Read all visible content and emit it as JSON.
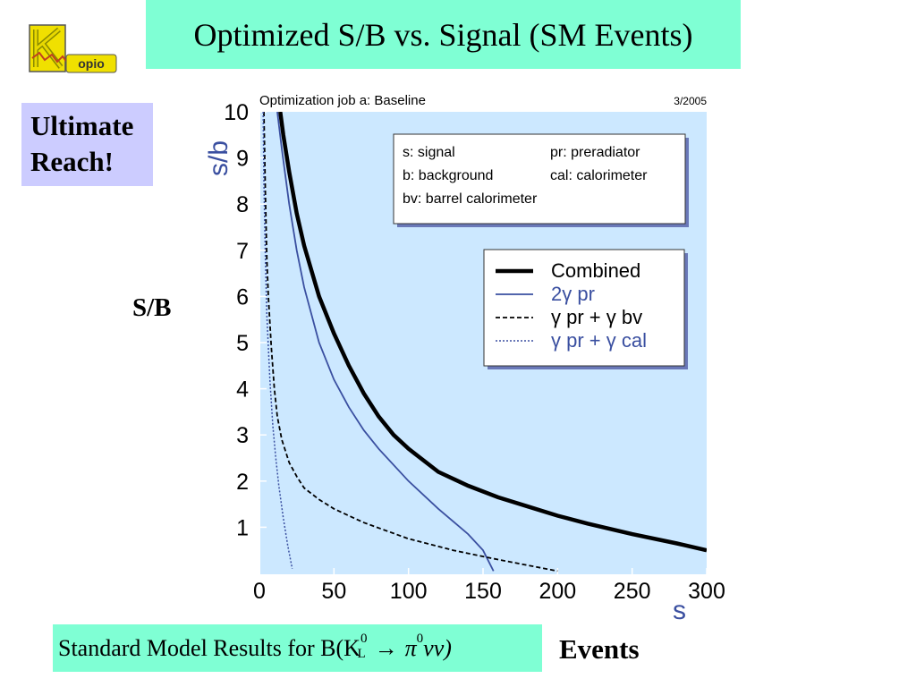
{
  "slide": {
    "title": "Optimized S/B vs. Signal (SM Events)",
    "logo_text": "opio",
    "logo_letter": "K",
    "reach_line1": "Ultimate",
    "reach_line2": "Reach!",
    "side_ylabel": "S/B",
    "side_xlabel": "Events",
    "footer_prefix": "Standard Model Results  for B(K",
    "footer_sup": "0",
    "footer_sub": "L",
    "footer_arrow": "→",
    "footer_pi": "π",
    "footer_pi_sup": "0",
    "footer_end": "νν)"
  },
  "colors": {
    "title_bg": "#7fffd4",
    "reach_bg": "#ccccff",
    "plot_bg": "#cce8ff",
    "combined": "#000000",
    "blue": "#3a4fa0"
  },
  "chart_data": {
    "type": "line",
    "title": "Optimization job a: Baseline",
    "date_label": "3/2005",
    "xlabel": "s",
    "ylabel": "s/b",
    "xlim": [
      0,
      300
    ],
    "ylim": [
      0,
      10
    ],
    "xticks": [
      0,
      50,
      100,
      150,
      200,
      250,
      300
    ],
    "yticks": [
      1,
      2,
      3,
      4,
      5,
      6,
      7,
      8,
      9,
      10
    ],
    "legend_position": "upper-right",
    "notes": [
      {
        "left": "s: signal",
        "right": "pr: preradiator"
      },
      {
        "left": "b: background",
        "right": "cal: calorimeter"
      },
      {
        "left": "bv: barrel calorimeter",
        "right": ""
      }
    ],
    "series": [
      {
        "name": "Combined",
        "style": "solid-thick",
        "color": "#000000",
        "x": [
          14,
          16,
          20,
          25,
          30,
          40,
          50,
          60,
          70,
          80,
          90,
          100,
          120,
          140,
          160,
          180,
          200,
          220,
          250,
          280,
          300
        ],
        "y": [
          10,
          9.5,
          8.7,
          7.8,
          7.1,
          6.0,
          5.2,
          4.5,
          3.9,
          3.4,
          3.0,
          2.7,
          2.2,
          1.9,
          1.65,
          1.45,
          1.25,
          1.08,
          0.85,
          0.65,
          0.5
        ]
      },
      {
        "name": "2γ pr",
        "style": "solid-thin",
        "color": "#3a4fa0",
        "x": [
          12,
          15,
          20,
          25,
          30,
          40,
          50,
          60,
          70,
          80,
          100,
          120,
          140,
          150,
          157
        ],
        "y": [
          10,
          9.2,
          8.0,
          7.0,
          6.2,
          5.0,
          4.2,
          3.6,
          3.1,
          2.7,
          2.0,
          1.4,
          0.85,
          0.5,
          0.05
        ]
      },
      {
        "name": "γ pr + γ bv",
        "style": "dashed",
        "color": "#000000",
        "x": [
          3,
          4,
          5,
          6,
          8,
          10,
          12,
          15,
          20,
          25,
          30,
          40,
          50,
          70,
          100,
          130,
          160,
          200
        ],
        "y": [
          10,
          8.2,
          6.8,
          6.0,
          4.9,
          4.0,
          3.4,
          2.9,
          2.4,
          2.1,
          1.85,
          1.6,
          1.4,
          1.1,
          0.75,
          0.5,
          0.3,
          0.05
        ]
      },
      {
        "name": "γ pr + γ cal",
        "style": "dotted",
        "color": "#3a4fa0",
        "x": [
          2.5,
          3,
          4,
          5,
          7,
          9,
          11,
          13,
          16,
          19,
          22
        ],
        "y": [
          10,
          8.5,
          6.8,
          5.6,
          4.2,
          3.2,
          2.5,
          1.9,
          1.2,
          0.6,
          0.1
        ]
      }
    ]
  }
}
